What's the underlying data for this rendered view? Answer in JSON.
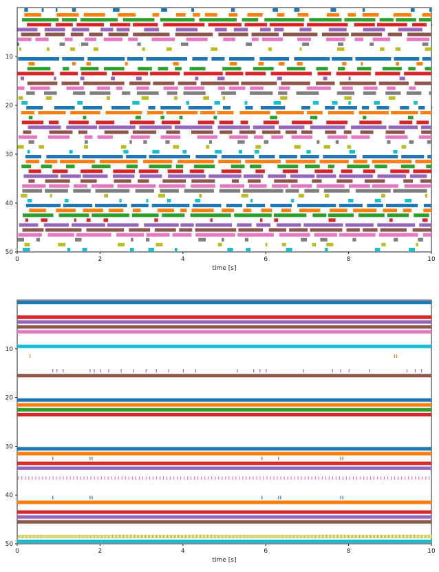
{
  "chart_data": [
    {
      "type": "raster",
      "xlabel": "time [s]",
      "ylabel": "",
      "xlim": [
        0,
        10
      ],
      "ylim": [
        50,
        0
      ],
      "xticks": [
        0,
        2,
        4,
        6,
        8,
        10
      ],
      "xtick_labels": [
        "0",
        "2",
        "4",
        "6",
        "8",
        "10"
      ],
      "yticks": [
        10,
        20,
        30,
        40,
        50
      ],
      "ytick_labels": [
        "10",
        "20",
        "30",
        "40",
        "50"
      ],
      "palette": [
        "#1f77b4",
        "#ff7f0e",
        "#2ca02c",
        "#d62728",
        "#9467bd",
        "#8c564b",
        "#e377c2",
        "#7f7f7f",
        "#bcbd22",
        "#17becf"
      ],
      "neuron_activity": [
        {
          "neuron": 0,
          "pattern": "sparse-bursts"
        },
        {
          "neuron": 1,
          "pattern": "bursts"
        },
        {
          "neuron": 2,
          "pattern": "dense-bursts"
        },
        {
          "neuron": 3,
          "pattern": "dense-bursts"
        },
        {
          "neuron": 4,
          "pattern": "bursts"
        },
        {
          "neuron": 5,
          "pattern": "dense-bursts"
        },
        {
          "neuron": 6,
          "pattern": "bursts"
        },
        {
          "neuron": 7,
          "pattern": "sparse-bursts"
        },
        {
          "neuron": 8,
          "pattern": "sparse-bursts"
        },
        {
          "neuron": 9,
          "pattern": "silent"
        },
        {
          "neuron": 10,
          "pattern": "dense-bursts"
        },
        {
          "neuron": 11,
          "pattern": "sparse-bursts"
        },
        {
          "neuron": 12,
          "pattern": "bursts"
        },
        {
          "neuron": 13,
          "pattern": "dense-bursts"
        },
        {
          "neuron": 14,
          "pattern": "sparse-bursts"
        },
        {
          "neuron": 15,
          "pattern": "dense-bursts"
        },
        {
          "neuron": 16,
          "pattern": "bursts"
        },
        {
          "neuron": 17,
          "pattern": "bursts"
        },
        {
          "neuron": 18,
          "pattern": "sparse-bursts"
        },
        {
          "neuron": 19,
          "pattern": "sparse-bursts"
        },
        {
          "neuron": 20,
          "pattern": "bursts"
        },
        {
          "neuron": 21,
          "pattern": "dense-bursts"
        },
        {
          "neuron": 22,
          "pattern": "sparse-bursts"
        },
        {
          "neuron": 23,
          "pattern": "bursts"
        },
        {
          "neuron": 24,
          "pattern": "dense-bursts"
        },
        {
          "neuron": 25,
          "pattern": "bursts"
        },
        {
          "neuron": 26,
          "pattern": "bursts"
        },
        {
          "neuron": 27,
          "pattern": "sparse-bursts"
        },
        {
          "neuron": 28,
          "pattern": "sparse-bursts"
        },
        {
          "neuron": 29,
          "pattern": "sparse-bursts"
        },
        {
          "neuron": 30,
          "pattern": "dense-bursts"
        },
        {
          "neuron": 31,
          "pattern": "dense-bursts"
        },
        {
          "neuron": 32,
          "pattern": "bursts"
        },
        {
          "neuron": 33,
          "pattern": "bursts"
        },
        {
          "neuron": 34,
          "pattern": "dense-bursts"
        },
        {
          "neuron": 35,
          "pattern": "bursts"
        },
        {
          "neuron": 36,
          "pattern": "dense-bursts"
        },
        {
          "neuron": 37,
          "pattern": "dense-bursts"
        },
        {
          "neuron": 38,
          "pattern": "sparse-bursts"
        },
        {
          "neuron": 39,
          "pattern": "sparse-bursts"
        },
        {
          "neuron": 40,
          "pattern": "dense-bursts"
        },
        {
          "neuron": 41,
          "pattern": "bursts"
        },
        {
          "neuron": 42,
          "pattern": "dense-bursts"
        },
        {
          "neuron": 43,
          "pattern": "sparse-bursts"
        },
        {
          "neuron": 44,
          "pattern": "dense-bursts"
        },
        {
          "neuron": 45,
          "pattern": "dense-bursts"
        },
        {
          "neuron": 46,
          "pattern": "dense-bursts"
        },
        {
          "neuron": 47,
          "pattern": "sparse-bursts"
        },
        {
          "neuron": 48,
          "pattern": "sparse-bursts"
        },
        {
          "neuron": 49,
          "pattern": "sparse-bursts"
        }
      ]
    },
    {
      "type": "raster",
      "xlabel": "time [s]",
      "ylabel": "",
      "xlim": [
        0,
        10
      ],
      "ylim": [
        50,
        0
      ],
      "xticks": [
        0,
        2,
        4,
        6,
        8,
        10
      ],
      "xtick_labels": [
        "0",
        "2",
        "4",
        "6",
        "8",
        "10"
      ],
      "yticks": [
        10,
        20,
        30,
        40,
        50
      ],
      "ytick_labels": [
        "10",
        "20",
        "30",
        "40",
        "50"
      ],
      "palette": [
        "#1f77b4",
        "#ff7f0e",
        "#2ca02c",
        "#d62728",
        "#9467bd",
        "#8c564b",
        "#e377c2",
        "#7f7f7f",
        "#bcbd22",
        "#17becf"
      ],
      "neuron_activity": [
        {
          "neuron": 0,
          "pattern": "continuous"
        },
        {
          "neuron": 3,
          "pattern": "continuous"
        },
        {
          "neuron": 4,
          "pattern": "continuous"
        },
        {
          "neuron": 5,
          "pattern": "continuous"
        },
        {
          "neuron": 6,
          "pattern": "continuous"
        },
        {
          "neuron": 9,
          "pattern": "continuous"
        },
        {
          "neuron": 11,
          "pattern": "isolated",
          "spike_times": [
            0.3,
            9.1,
            9.15
          ]
        },
        {
          "neuron": 14,
          "pattern": "isolated",
          "spike_times": [
            0.85,
            0.95,
            1.1,
            1.75,
            1.85,
            2.0,
            2.2,
            2.5,
            2.8,
            3.1,
            3.35,
            3.65,
            4.0,
            4.3,
            5.3,
            5.7,
            5.85,
            6.0,
            6.9,
            7.6,
            7.8,
            8.0,
            8.5,
            9.4,
            9.6,
            9.75
          ]
        },
        {
          "neuron": 15,
          "pattern": "continuous"
        },
        {
          "neuron": 20,
          "pattern": "continuous"
        },
        {
          "neuron": 21,
          "pattern": "continuous"
        },
        {
          "neuron": 22,
          "pattern": "continuous"
        },
        {
          "neuron": 23,
          "pattern": "continuous"
        },
        {
          "neuron": 30,
          "pattern": "continuous"
        },
        {
          "neuron": 31,
          "pattern": "continuous"
        },
        {
          "neuron": 32,
          "pattern": "isolated",
          "spike_times": [
            0.85,
            1.75,
            1.8,
            5.9,
            6.3,
            7.8,
            7.85
          ]
        },
        {
          "neuron": 33,
          "pattern": "continuous"
        },
        {
          "neuron": 34,
          "pattern": "continuous"
        },
        {
          "neuron": 36,
          "pattern": "regular",
          "rate_hz": 12
        },
        {
          "neuron": 40,
          "pattern": "isolated",
          "spike_times": [
            0.85,
            1.75,
            1.8,
            5.9,
            6.3,
            6.35,
            7.8,
            7.85
          ]
        },
        {
          "neuron": 41,
          "pattern": "continuous"
        },
        {
          "neuron": 43,
          "pattern": "continuous"
        },
        {
          "neuron": 44,
          "pattern": "continuous"
        },
        {
          "neuron": 45,
          "pattern": "continuous"
        },
        {
          "neuron": 48,
          "pattern": "regular",
          "rate_hz": 30
        },
        {
          "neuron": 49,
          "pattern": "continuous"
        }
      ]
    }
  ]
}
